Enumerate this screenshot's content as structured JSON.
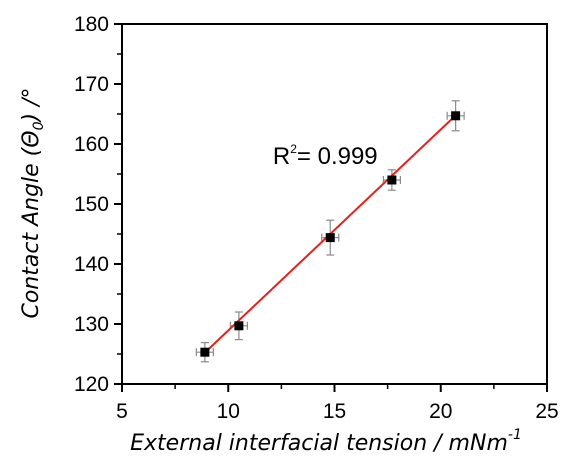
{
  "chart_data": {
    "type": "scatter",
    "xlabel_main": "External interfacial tension / mNm",
    "xlabel_sup": "-1",
    "ylabel_pre": "Contact Angle (",
    "ylabel_theta": "Θ",
    "ylabel_sub": "0",
    "ylabel_post": ") /°",
    "xlim": [
      5,
      25
    ],
    "ylim": [
      120,
      180
    ],
    "xticks": [
      5,
      10,
      15,
      20,
      25
    ],
    "yticks": [
      120,
      130,
      140,
      150,
      160,
      170,
      180
    ],
    "grid": false,
    "legend": "none",
    "series": [
      {
        "points": [
          {
            "x": 8.9,
            "y": 125.3,
            "xerr": 0.4,
            "yerr": 1.6
          },
          {
            "x": 10.5,
            "y": 129.7,
            "xerr": 0.4,
            "yerr": 2.3
          },
          {
            "x": 14.8,
            "y": 144.4,
            "xerr": 0.4,
            "yerr": 2.9
          },
          {
            "x": 17.7,
            "y": 154.0,
            "xerr": 0.4,
            "yerr": 1.7
          },
          {
            "x": 20.7,
            "y": 164.7,
            "xerr": 0.4,
            "yerr": 2.5
          }
        ]
      }
    ],
    "fit_line": {
      "x": [
        8.8,
        20.8
      ],
      "y": [
        124.9,
        165.1
      ]
    },
    "annotation": {
      "prefix": "R",
      "sup": "2",
      "suffix": "= 0.999",
      "x": 12.1,
      "y": 156.7
    },
    "colors": {
      "points": "#000000",
      "fit": "#e8201c",
      "errorbar": "#8a8a8a",
      "axis": "#000000"
    }
  }
}
